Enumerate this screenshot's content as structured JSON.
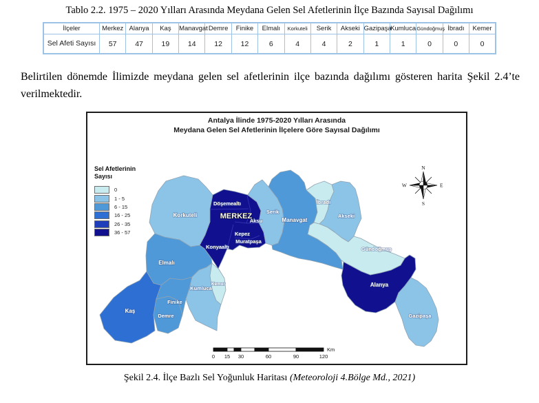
{
  "page": {
    "table_title": "Tablo 2.2. 1975 – 2020 Yılları Arasında Meydana Gelen Sel Afetlerinin İlçe Bazında Sayısal Dağılımı",
    "paragraph": "Belirtilen dönemde İlimizde meydana gelen sel afetlerinin ilçe bazında dağılımı gösteren harita Şekil 2.4’te verilmektedir.",
    "caption_main": "Şekil 2.4. İlçe Bazlı Sel Yoğunluk Haritası ",
    "caption_source": "(Meteoroloji 4.Bölge Md., 2021)"
  },
  "table": {
    "corner_label": "İlçeler",
    "row_label": "Sel Afeti Sayısı",
    "columns": [
      "Merkez",
      "Alanya",
      "Kaş",
      "Manavgat",
      "Demre",
      "Finike",
      "Elmalı",
      "Korkuteli",
      "Serik",
      "Akseki",
      "Gazipaşa",
      "Kumluca",
      "Gündoğmuş",
      "İbradı",
      "Kemer"
    ],
    "values": [
      "57",
      "47",
      "19",
      "14",
      "12",
      "12",
      "6",
      "4",
      "4",
      "2",
      "1",
      "1",
      "0",
      "0",
      "0"
    ]
  },
  "map": {
    "title_line1": "Antalya İlinde 1975-2020 Yılları Arasında",
    "title_line2": "Meydana Gelen Sel Afetlerinin İlçelere Göre Sayısal Dağılımı",
    "legend": {
      "title_line1": "Sel Afetlerinin",
      "title_line2": "Sayısı",
      "classes": [
        {
          "label": "0",
          "color": "#c8ebf0"
        },
        {
          "label": "1 - 5",
          "color": "#8cc4e8"
        },
        {
          "label": "6 - 15",
          "color": "#4f99d8"
        },
        {
          "label": "16 - 25",
          "color": "#2e6fd4"
        },
        {
          "label": "26 - 35",
          "color": "#1f3eba"
        },
        {
          "label": "36 - 57",
          "color": "#11118f"
        }
      ]
    },
    "compass": {
      "n": "N",
      "e": "E",
      "s": "S",
      "w": "W"
    },
    "scalebar": {
      "ticks": [
        "0",
        "15",
        "30",
        "60",
        "90",
        "120"
      ],
      "unit": "Km"
    },
    "districts": [
      {
        "id": "merkez",
        "name": "MERKEZ",
        "value": 57,
        "class": 5
      },
      {
        "id": "dosemealti",
        "name": "Döşemealtı",
        "value": 57,
        "class": 5
      },
      {
        "id": "aksu",
        "name": "Aksu",
        "value": 57,
        "class": 5
      },
      {
        "id": "kepez",
        "name": "Kepez",
        "value": 57,
        "class": 5
      },
      {
        "id": "muratpasa",
        "name": "Muratpaşa",
        "value": 57,
        "class": 5
      },
      {
        "id": "konyaalti",
        "name": "Konyaaltı",
        "value": 57,
        "class": 5
      },
      {
        "id": "alanya",
        "name": "Alanya",
        "value": 47,
        "class": 5
      },
      {
        "id": "kas",
        "name": "Kaş",
        "value": 19,
        "class": 3
      },
      {
        "id": "manavgat",
        "name": "Manavgat",
        "value": 14,
        "class": 2
      },
      {
        "id": "demre",
        "name": "Demre",
        "value": 12,
        "class": 2
      },
      {
        "id": "finike",
        "name": "Finike",
        "value": 12,
        "class": 2
      },
      {
        "id": "elmali",
        "name": "Elmalı",
        "value": 6,
        "class": 2
      },
      {
        "id": "korkuteli",
        "name": "Korkuteli",
        "value": 4,
        "class": 1
      },
      {
        "id": "serik",
        "name": "Serik",
        "value": 4,
        "class": 1
      },
      {
        "id": "akseki",
        "name": "Akseki",
        "value": 2,
        "class": 1
      },
      {
        "id": "gazipasa",
        "name": "Gazipaşa",
        "value": 1,
        "class": 1
      },
      {
        "id": "kumluca",
        "name": "Kumluca",
        "value": 1,
        "class": 1
      },
      {
        "id": "gundogmus",
        "name": "Gündoğmuş",
        "value": 0,
        "class": 0
      },
      {
        "id": "ibradi",
        "name": "İbradı",
        "value": 0,
        "class": 0
      },
      {
        "id": "kemer",
        "name": "Kemer",
        "value": 0,
        "class": 0
      }
    ]
  }
}
